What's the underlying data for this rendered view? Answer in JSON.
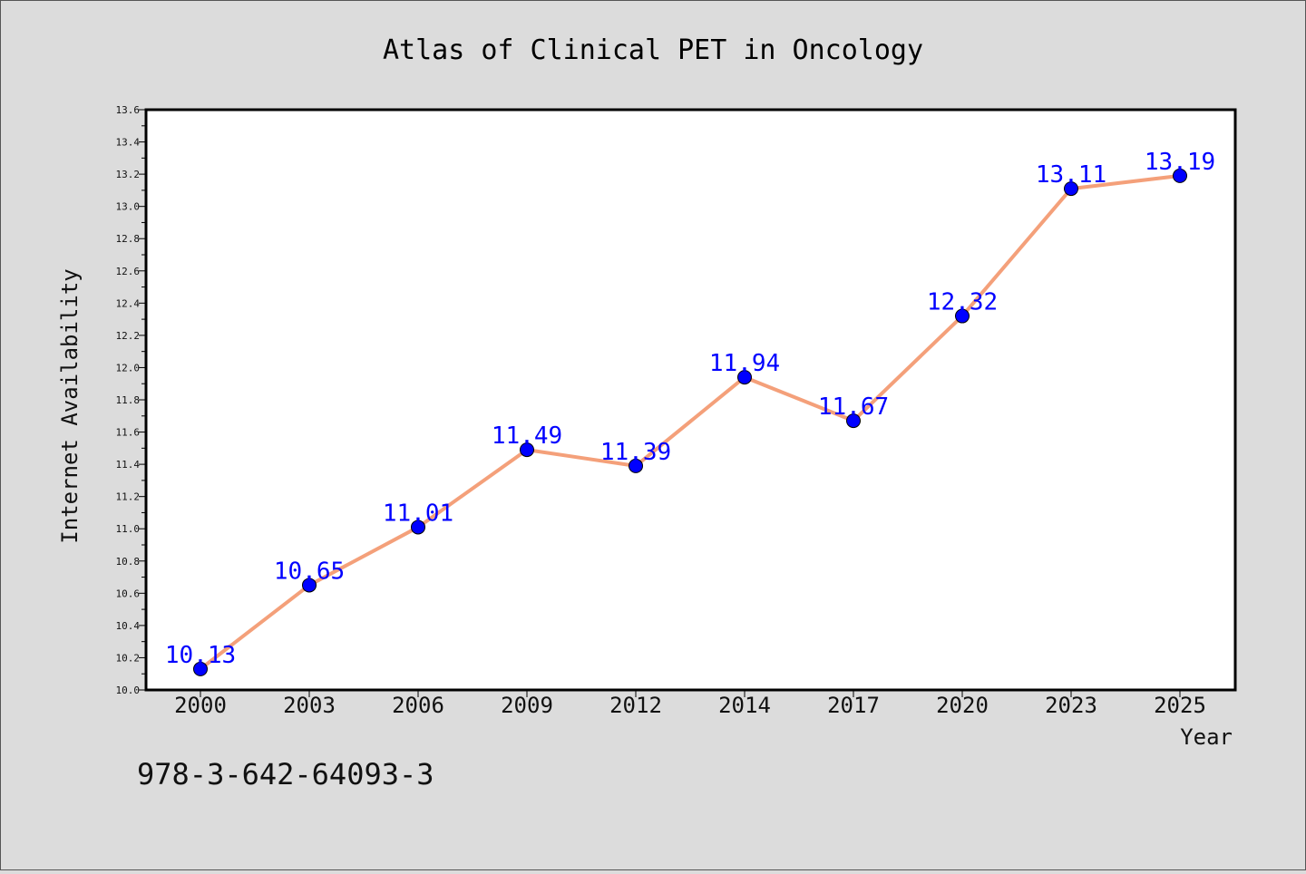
{
  "chart_data": {
    "type": "line",
    "title": "Atlas of Clinical PET in Oncology",
    "xlabel": "Year",
    "ylabel": "Internet Availability",
    "categories": [
      "2000",
      "2003",
      "2006",
      "2009",
      "2012",
      "2014",
      "2017",
      "2020",
      "2023",
      "2025"
    ],
    "series": [
      {
        "values": [
          10.13,
          10.65,
          11.01,
          11.49,
          11.39,
          11.94,
          11.67,
          12.32,
          13.11,
          13.19
        ],
        "data_labels": [
          "10.13",
          "10.65",
          "11.01",
          "11.49",
          "11.39",
          "11.94",
          "11.67",
          "12.32",
          "13.11",
          "13.19"
        ]
      }
    ],
    "ylim": [
      10.0,
      13.6
    ],
    "yticks": [
      "10.0",
      "10.2",
      "10.4",
      "10.6",
      "10.8",
      "11.0",
      "11.2",
      "11.4",
      "11.6",
      "11.8",
      "12.0",
      "12.2",
      "12.4",
      "12.6",
      "12.8",
      "13.0",
      "13.2",
      "13.4",
      "13.6"
    ],
    "grid": false,
    "colors": {
      "line": "#f4a07a",
      "marker": "#0000ff",
      "label": "#0000ff",
      "plot_bg": "#ffffff",
      "figure_bg": "#dcdcdc"
    }
  },
  "footer_text": "978-3-642-64093-3"
}
